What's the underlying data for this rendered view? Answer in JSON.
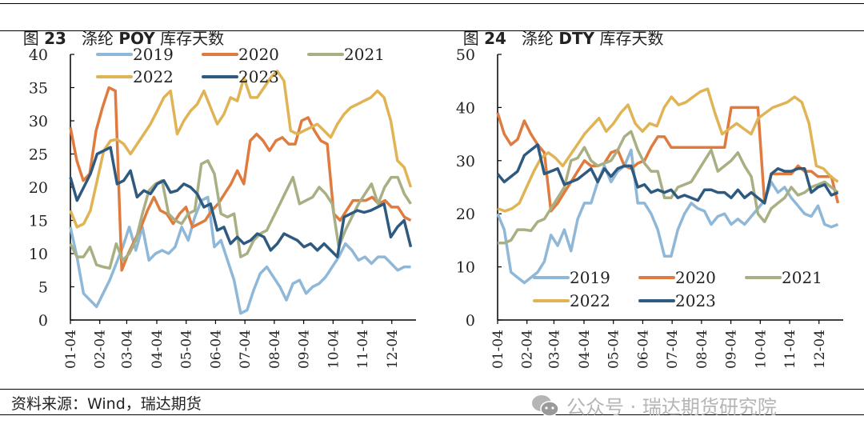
{
  "titles": {
    "left": {
      "prefix": "图 ",
      "num": "23",
      "name": "涤纶 ",
      "bold": "POY",
      "suffix": " 库存天数"
    },
    "right": {
      "prefix": "图 ",
      "num": "24",
      "name": "涤纶 ",
      "bold": "DTY",
      "suffix": " 库存天数"
    }
  },
  "footer": {
    "source": "资料来源：Wind，瑞达期货",
    "watermark": "公众号 · 瑞达期货研究院",
    "watermark_icon": "wechat-icon"
  },
  "colors": {
    "2019": "#8fb8d8",
    "2020": "#e07b3f",
    "2021": "#a8b083",
    "2022": "#e0b454",
    "2023": "#2f5a80"
  },
  "chart_data": [
    {
      "type": "line",
      "title": "涤纶 POY 库存天数",
      "xlabel": "",
      "ylabel": "",
      "ylim": [
        0,
        40
      ],
      "yticks": [
        0,
        5,
        10,
        15,
        20,
        25,
        30,
        35,
        40
      ],
      "xticks": [
        "01-04",
        "02-04",
        "03-04",
        "04-04",
        "05-04",
        "06-04",
        "07-04",
        "08-04",
        "09-04",
        "10-04",
        "11-04",
        "12-04"
      ],
      "legend_position": "top",
      "grid": false,
      "series": [
        {
          "name": "2019",
          "values": [
            14,
            9.5,
            4,
            3,
            2,
            4,
            6,
            8.5,
            11,
            14,
            10.5,
            14,
            9,
            10,
            10.5,
            10,
            11,
            14,
            12,
            15.5,
            18,
            18.5,
            11,
            12,
            9,
            6,
            1,
            1.5,
            4.5,
            7,
            8,
            6.5,
            5,
            3,
            5.5,
            6,
            4,
            5,
            5.5,
            6.5,
            8,
            9.5,
            11.5,
            10.5,
            9,
            9.5,
            8.5,
            9.5,
            9.5,
            8.5,
            7.5,
            8,
            8
          ]
        },
        {
          "name": "2020",
          "values": [
            29,
            24,
            21,
            22,
            28.5,
            32,
            35,
            34.5,
            7.5,
            10,
            12,
            14,
            16.5,
            18.5,
            16.5,
            16,
            14.5,
            16,
            17,
            14,
            14.5,
            15,
            16.5,
            17.5,
            19,
            20.5,
            22.5,
            20.5,
            27,
            28,
            27,
            25.5,
            27,
            27.5,
            26.5,
            26.5,
            30,
            30.5,
            28.5,
            27,
            26.5,
            16,
            15,
            16.5,
            18,
            18,
            18,
            18.5,
            17.5,
            18,
            17,
            17,
            15.5,
            15
          ]
        },
        {
          "name": "2021",
          "values": [
            11.5,
            9.5,
            9.5,
            11,
            8.3,
            8,
            7.8,
            11.5,
            9,
            10,
            12,
            16,
            19.5,
            20.5,
            21,
            16,
            15,
            14.5,
            16,
            16.5,
            23.5,
            24,
            22,
            16,
            15.5,
            16,
            9.5,
            10,
            12,
            13,
            13.5,
            15.5,
            17.5,
            19.5,
            21.5,
            17.5,
            18,
            18.5,
            20,
            19,
            17.5,
            11,
            13.5,
            15.5,
            17.5,
            19,
            20.5,
            17.5,
            20,
            21.5,
            21.5,
            19,
            17.5
          ]
        },
        {
          "name": "2022",
          "values": [
            16.5,
            14,
            14.5,
            16.5,
            21,
            25.5,
            27,
            27.2,
            26.5,
            25,
            26.5,
            28,
            29.5,
            31.5,
            33.5,
            34.5,
            28,
            30,
            31.5,
            32.5,
            34.5,
            32,
            29.5,
            31,
            33.5,
            33,
            36.5,
            33.5,
            33.5,
            35,
            36.5,
            37.5,
            36,
            28.5,
            28,
            28.5,
            29,
            29.5,
            28.5,
            27.5,
            29.5,
            31,
            32,
            32.5,
            33,
            33.5,
            34.5,
            33.5,
            30,
            24,
            23,
            20
          ]
        },
        {
          "name": "2023",
          "values": [
            21.5,
            18,
            20,
            22,
            25,
            25.5,
            26,
            20.5,
            21,
            22.5,
            18.5,
            19.5,
            19,
            20.5,
            21,
            19.2,
            19.5,
            20.5,
            20,
            19,
            17,
            17.5,
            13.5,
            14,
            11.5,
            12.5,
            11.5,
            12,
            13,
            12.5,
            10.5,
            11.5,
            13,
            12.5,
            12,
            11,
            11.5,
            10.5,
            11.5,
            10.5,
            9.5,
            15.5,
            16,
            16.5,
            16.2,
            16.5,
            17,
            17.5,
            12.5,
            14,
            15,
            11
          ]
        }
      ]
    },
    {
      "type": "line",
      "title": "涤纶 DTY 库存天数",
      "xlabel": "",
      "ylabel": "",
      "ylim": [
        0,
        50
      ],
      "yticks": [
        0,
        10,
        20,
        30,
        40,
        50
      ],
      "xticks": [
        "01-04",
        "02-04",
        "03-04",
        "04-04",
        "05-04",
        "06-04",
        "07-04",
        "08-04",
        "09-04",
        "10-04",
        "11-04",
        "12-04"
      ],
      "legend_position": "bottom-left",
      "grid": false,
      "series": [
        {
          "name": "2019",
          "values": [
            20,
            17,
            9,
            8,
            7,
            8,
            9,
            11,
            16,
            14,
            17,
            13,
            19,
            22,
            22,
            26,
            29,
            26,
            28,
            29,
            32,
            22,
            22,
            20,
            17,
            12,
            12,
            17,
            20,
            22,
            21,
            20.5,
            18,
            19.5,
            20,
            18,
            19,
            18,
            19.5,
            21,
            22.5,
            26,
            24,
            25,
            23,
            21.5,
            20,
            19.5,
            21.5,
            18,
            17.5,
            18
          ]
        },
        {
          "name": "2020",
          "values": [
            39,
            35,
            33,
            34,
            37.5,
            35,
            33,
            31.5,
            20.5,
            22,
            24,
            26,
            28,
            30,
            29,
            29,
            29.5,
            31.5,
            32,
            29,
            28.5,
            29.5,
            30,
            32.5,
            34.5,
            34.5,
            32.5,
            32.5,
            32.5,
            32.5,
            32.5,
            32.5,
            32.5,
            32.5,
            32.5,
            40,
            40,
            40,
            40,
            40,
            22,
            27.5,
            27.5,
            27.5,
            27.5,
            29,
            28,
            28,
            27,
            27,
            27,
            22
          ]
        },
        {
          "name": "2021",
          "values": [
            14.5,
            14.5,
            15,
            17,
            17,
            16.8,
            18.5,
            19,
            21,
            23,
            25,
            30,
            30.5,
            32.5,
            30,
            29,
            29.5,
            30,
            32,
            34.5,
            35.5,
            32,
            29.5,
            28,
            28,
            23,
            23,
            25,
            25.5,
            26,
            28,
            30,
            32,
            28,
            29,
            30,
            31.5,
            29,
            27,
            20,
            18.5,
            21,
            22,
            23,
            25,
            23.5,
            24,
            25,
            25.5,
            26,
            25,
            24
          ]
        },
        {
          "name": "2022",
          "values": [
            21,
            20.5,
            21,
            22,
            25,
            28,
            30.5,
            31.5,
            30.5,
            29,
            31,
            33,
            35,
            36.5,
            38,
            35.5,
            37,
            39,
            40.5,
            37,
            35.5,
            37,
            36.5,
            40,
            42,
            40.5,
            41,
            42,
            43,
            43.5,
            39,
            35,
            36,
            37,
            36,
            35,
            38,
            39,
            40,
            40.5,
            41,
            42,
            41,
            37,
            29,
            28.5,
            27,
            26
          ]
        },
        {
          "name": "2023",
          "values": [
            27.5,
            26,
            27,
            28,
            31,
            32,
            33,
            27.5,
            28,
            28.5,
            25.5,
            26,
            26.5,
            27.5,
            28.5,
            26,
            28.5,
            27,
            28.5,
            29,
            29,
            25,
            25.5,
            24,
            24.5,
            24,
            24.5,
            23,
            23.5,
            23,
            22.5,
            24.5,
            24.5,
            24,
            24,
            23,
            24.5,
            23,
            24,
            23,
            22,
            27.5,
            28.5,
            28,
            28,
            28.5,
            28.5,
            24,
            25,
            25.5,
            23.5,
            24
          ]
        }
      ]
    }
  ]
}
